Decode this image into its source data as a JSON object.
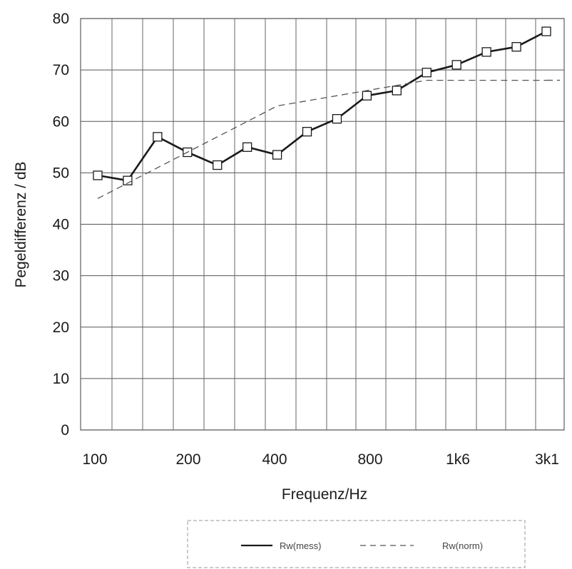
{
  "chart_data": {
    "type": "line",
    "title": "",
    "xlabel": "Frequenz/Hz",
    "ylabel": "Pegeldifferenz / dB",
    "ylim": [
      0,
      80
    ],
    "yticks": [
      0,
      10,
      20,
      30,
      40,
      50,
      60,
      70,
      80
    ],
    "x_tick_labels": [
      "100",
      "200",
      "400",
      "800",
      "1k6",
      "3k1"
    ],
    "grid": true,
    "legend_position": "bottom-center",
    "x": [
      "100",
      "125",
      "160",
      "200",
      "250",
      "315",
      "400",
      "500",
      "630",
      "800",
      "1000",
      "1250",
      "1600",
      "2000",
      "2500",
      "3150"
    ],
    "series": [
      {
        "name": "Rw(mess)",
        "style": "solid",
        "marker": "square",
        "color": "#1a1a1a",
        "values": [
          49.5,
          48.5,
          57,
          54,
          51.5,
          55,
          53.5,
          58,
          60.5,
          65,
          66,
          69.5,
          71,
          73.5,
          74.5,
          77.5
        ]
      },
      {
        "name": "Rw(norm)",
        "style": "dashed",
        "color": "#555555",
        "values": [
          45,
          48,
          51,
          54,
          57,
          60,
          63,
          64,
          65,
          66,
          67,
          68,
          68,
          68,
          68,
          68
        ]
      }
    ]
  }
}
